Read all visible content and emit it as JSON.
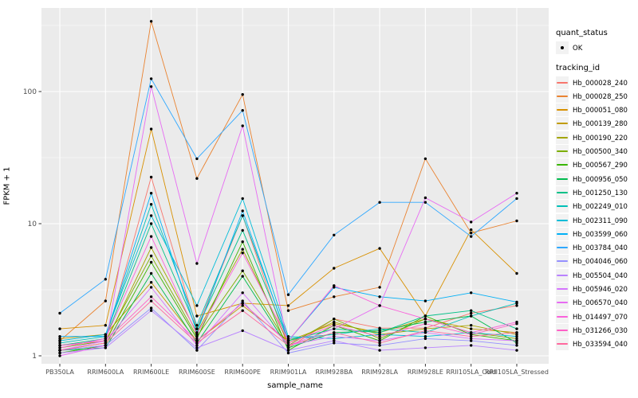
{
  "chart_data": {
    "type": "line",
    "title": "",
    "xlabel": "sample_name",
    "ylabel": "FPKM + 1",
    "y_scale": "log10",
    "y_ticks": [
      1,
      10,
      100
    ],
    "y_minor_ticks": [
      3.162,
      31.62,
      316.2
    ],
    "ylim": [
      1,
      430
    ],
    "grid": true,
    "legend_position": "right",
    "point_marker": "black-dot",
    "categories": [
      "PB350LA",
      "RRIM600LA",
      "RRIM600LE",
      "RRIM600SE",
      "RRIM600PE",
      "RRIM901LA",
      "RRIM928BA",
      "RRIM928LA",
      "RRIM928LE",
      "RRII105LA_Cold",
      "RRII105LA_Stressed"
    ],
    "series": [
      {
        "name": "Hb_000028_240",
        "color": "#F8766D",
        "values": [
          1.2,
          1.3,
          22.5,
          1.6,
          11.5,
          1.15,
          1.9,
          1.62,
          1.62,
          2.1,
          2.4
        ]
      },
      {
        "name": "Hb_000028_250",
        "color": "#EA8331",
        "values": [
          1.3,
          2.6,
          340,
          22,
          95,
          2.2,
          2.8,
          3.3,
          31,
          8.5,
          10.5
        ]
      },
      {
        "name": "Hb_000051_080",
        "color": "#D89000",
        "values": [
          1.6,
          1.7,
          52,
          2.0,
          2.5,
          2.4,
          4.6,
          6.5,
          2.0,
          9.0,
          4.2
        ]
      },
      {
        "name": "Hb_000139_280",
        "color": "#C09B00",
        "values": [
          1.35,
          1.45,
          3.6,
          1.3,
          2.4,
          1.3,
          1.75,
          1.5,
          1.9,
          1.6,
          1.5
        ]
      },
      {
        "name": "Hb_000190_220",
        "color": "#A3A500",
        "values": [
          1.1,
          1.25,
          6.6,
          1.5,
          6.4,
          1.25,
          1.8,
          1.45,
          1.6,
          1.7,
          1.45
        ]
      },
      {
        "name": "Hb_000500_340",
        "color": "#7CAE00",
        "values": [
          1.15,
          1.3,
          5.7,
          1.4,
          4.4,
          1.2,
          1.9,
          1.35,
          1.9,
          1.5,
          1.35
        ]
      },
      {
        "name": "Hb_000567_290",
        "color": "#39B600",
        "values": [
          1.05,
          1.2,
          5.1,
          1.35,
          7.3,
          1.1,
          1.7,
          1.3,
          2.0,
          1.45,
          1.3
        ]
      },
      {
        "name": "Hb_000956_050",
        "color": "#00BB4E",
        "values": [
          1.1,
          1.15,
          4.2,
          1.25,
          4.0,
          1.15,
          1.5,
          1.55,
          1.8,
          2.0,
          1.25
        ]
      },
      {
        "name": "Hb_001250_130",
        "color": "#00C087",
        "values": [
          1.2,
          1.35,
          10,
          1.6,
          8.9,
          1.3,
          1.6,
          1.5,
          2.0,
          2.2,
          1.6
        ]
      },
      {
        "name": "Hb_002249_010",
        "color": "#00C0B8",
        "values": [
          1.25,
          1.4,
          14,
          1.7,
          11.5,
          1.35,
          1.45,
          1.6,
          1.5,
          2.0,
          2.5
        ]
      },
      {
        "name": "Hb_002311_090",
        "color": "#00BCD8",
        "values": [
          1.3,
          1.45,
          11.5,
          2.4,
          15.5,
          1.4,
          1.35,
          1.45,
          1.4,
          1.5,
          1.4
        ]
      },
      {
        "name": "Hb_003599_060",
        "color": "#00B0F6",
        "values": [
          1.4,
          1.4,
          17,
          1.5,
          12.5,
          1.3,
          3.3,
          2.8,
          2.6,
          3.0,
          2.55
        ]
      },
      {
        "name": "Hb_003784_040",
        "color": "#2FA8FF",
        "values": [
          2.1,
          3.8,
          125,
          31,
          72,
          2.9,
          8.2,
          14.5,
          14.5,
          8.0,
          15.5
        ]
      },
      {
        "name": "Hb_004046_060",
        "color": "#9590FF",
        "values": [
          1.1,
          1.2,
          2.3,
          1.1,
          2.6,
          1.05,
          1.25,
          1.2,
          1.35,
          1.3,
          1.2
        ]
      },
      {
        "name": "Hb_005504_040",
        "color": "#B983FF",
        "values": [
          1.05,
          1.15,
          2.2,
          1.15,
          1.55,
          1.1,
          1.3,
          1.1,
          1.15,
          1.2,
          1.1
        ]
      },
      {
        "name": "Hb_005946_020",
        "color": "#D575FE",
        "values": [
          1.1,
          1.3,
          3.3,
          1.2,
          3.0,
          1.2,
          1.4,
          1.3,
          1.5,
          1.35,
          1.3
        ]
      },
      {
        "name": "Hb_006570_040",
        "color": "#E76BF3",
        "values": [
          1.0,
          1.2,
          109,
          5.0,
          55,
          1.2,
          1.6,
          2.4,
          15.7,
          10.3,
          17
        ]
      },
      {
        "name": "Hb_014497_070",
        "color": "#FA62DB",
        "values": [
          1.15,
          1.35,
          8.0,
          1.45,
          6.0,
          1.3,
          3.4,
          2.4,
          1.9,
          1.5,
          1.8
        ]
      },
      {
        "name": "Hb_031266_030",
        "color": "#FF61C7",
        "values": [
          1.2,
          1.3,
          2.8,
          1.3,
          2.5,
          1.25,
          1.7,
          1.4,
          1.75,
          1.45,
          1.75
        ]
      },
      {
        "name": "Hb_033594_040",
        "color": "#FF689E",
        "values": [
          1.1,
          1.25,
          2.6,
          1.25,
          2.2,
          1.2,
          1.5,
          1.25,
          1.55,
          1.4,
          1.5
        ]
      }
    ]
  },
  "legend": {
    "quant_status_title": "quant_status",
    "quant_status_items": [
      {
        "label": "OK",
        "marker": "black-point"
      }
    ],
    "tracking_id_title": "tracking_id"
  },
  "theme": {
    "panel_bg": "#EBEBEB",
    "grid_color": "#FFFFFF",
    "tick_label_color": "#4D4D4D",
    "legend_key_bg": "#F2F2F2",
    "point_color": "#000000"
  }
}
